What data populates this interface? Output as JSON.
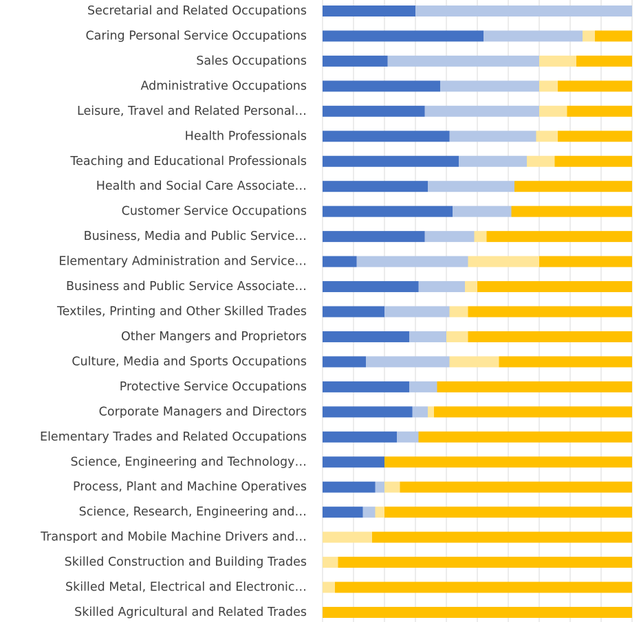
{
  "chart_data": {
    "type": "bar",
    "orientation": "horizontal",
    "stacked": true,
    "categories": [
      "Secretarial and Related Occupations",
      "Caring Personal Service Occupations",
      "Sales Occupations",
      "Administrative Occupations",
      "Leisure, Travel and Related Personal…",
      "Health Professionals",
      "Teaching and Educational Professionals",
      "Health and Social Care Associate…",
      "Customer Service Occupations",
      "Business, Media and Public Service…",
      "Elementary Administration and Service…",
      "Business and Public Service Associate…",
      "Textiles, Printing and Other Skilled Trades",
      "Other Mangers and Proprietors",
      "Culture, Media and Sports Occupations",
      "Protective Service Occupations",
      "Corporate Managers and Directors",
      "Elementary Trades and Related Occupations",
      "Science, Engineering and Technology…",
      "Process, Plant and Machine Operatives",
      "Science, Research, Engineering and…",
      "Transport and Mobile Machine Drivers and…",
      "Skilled Construction and Building Trades",
      "Skilled Metal, Electrical and Electronic…",
      "Skilled Agricultural and Related Trades"
    ],
    "series": [
      {
        "color": "#4472c4",
        "values": [
          30,
          52,
          21,
          38,
          33,
          41,
          44,
          34,
          42,
          33,
          11,
          31,
          20,
          28,
          14,
          28,
          29,
          24,
          20,
          17,
          13,
          0,
          0,
          0,
          0
        ]
      },
      {
        "color": "#b4c7e7",
        "values": [
          70,
          32,
          49,
          32,
          37,
          28,
          22,
          28,
          19,
          16,
          36,
          15,
          21,
          12,
          27,
          9,
          5,
          7,
          0,
          3,
          4,
          0,
          0,
          0,
          0
        ]
      },
      {
        "color": "#ffe699",
        "values": [
          0,
          4,
          12,
          6,
          9,
          7,
          9,
          0,
          0,
          4,
          23,
          4,
          6,
          7,
          16,
          0,
          2,
          0,
          0,
          5,
          3,
          16,
          5,
          4,
          0
        ]
      },
      {
        "color": "#ffc000",
        "values": [
          0,
          12,
          18,
          24,
          21,
          24,
          25,
          38,
          39,
          47,
          30,
          50,
          53,
          53,
          43,
          63,
          64,
          69,
          80,
          75,
          80,
          84,
          95,
          96,
          100
        ]
      }
    ],
    "xlim": [
      0,
      100
    ],
    "xticks": [
      0,
      10,
      20,
      30,
      40,
      50,
      60,
      70,
      80,
      90,
      100
    ],
    "grid": true
  }
}
